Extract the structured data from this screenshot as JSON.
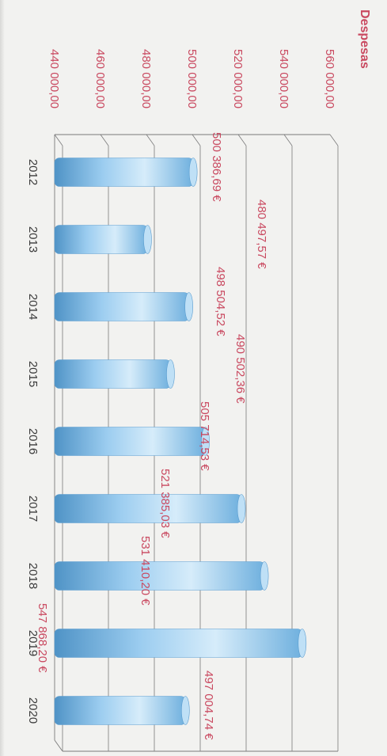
{
  "chart_data": {
    "type": "bar",
    "title": "Despesas",
    "xlabel": "",
    "ylabel": "",
    "ylim": [
      440000,
      560000
    ],
    "yticks": [
      440000,
      460000,
      480000,
      500000,
      520000,
      540000,
      560000
    ],
    "ytick_labels": [
      "440 000,00",
      "460 000,00",
      "480 000,00",
      "500 000,00",
      "520 000,00",
      "540 000,00",
      "560 000,00"
    ],
    "categories": [
      "2012",
      "2013",
      "2014",
      "2015",
      "2016",
      "2017",
      "2018",
      "2019",
      "2020"
    ],
    "values": [
      500386.69,
      480497.57,
      498504.52,
      490502.36,
      505714.53,
      521385.03,
      531410.2,
      547868.2,
      497004.74
    ],
    "data_labels": [
      "500 386,69 €",
      "480 497,57 €",
      "498 504,52 €",
      "490 502,36 €",
      "505 714,53 €",
      "521 385,03 €",
      "531 410,20 €",
      "547 868,20 €",
      "497 004,74 €"
    ],
    "grid": true,
    "legend": "none",
    "colors": {
      "bar": "#8ec5e8",
      "bar_dark": "#4f93c6",
      "bar_light": "#d6ecfa",
      "text": "#c9485f",
      "grid": "#7a7a7a",
      "tick_text": "#3a3a3a"
    }
  }
}
